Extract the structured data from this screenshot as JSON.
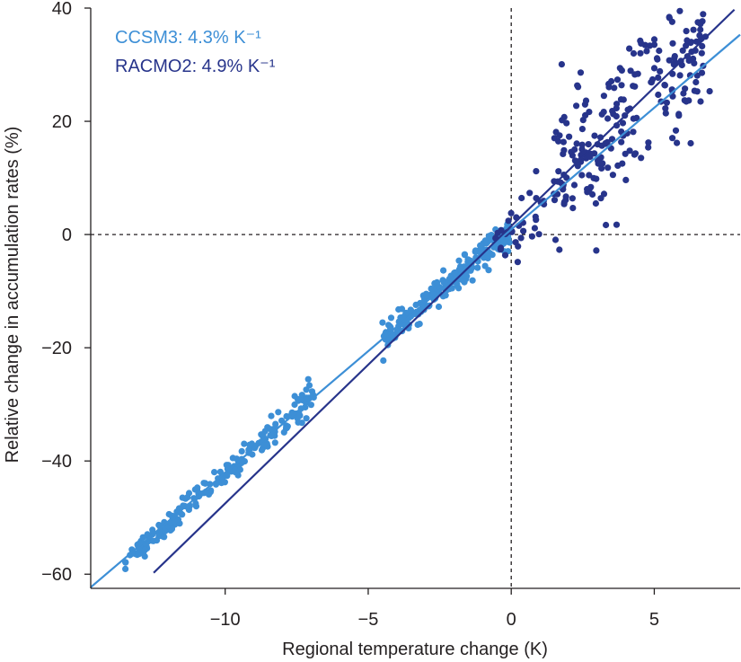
{
  "chart_data": {
    "type": "scatter",
    "title": "",
    "xlabel": "Regional temperature change (K)",
    "ylabel": "Relative change in accumulation rates (%)",
    "xlim": [
      -14.7,
      8.0
    ],
    "ylim": [
      -62.5,
      40.0
    ],
    "xticks": [
      -10,
      -5,
      0,
      5
    ],
    "xtick_labels": [
      "−10",
      "−5",
      "0",
      "5"
    ],
    "yticks": [
      -60,
      -40,
      -20,
      0,
      20,
      40
    ],
    "ytick_labels": [
      "−60",
      "−40",
      "−20",
      "0",
      "20",
      "40"
    ],
    "reference_lines": {
      "x": 0,
      "y": 0,
      "style": "dashed"
    },
    "legend": [
      {
        "label": "CCSM3: 4.3% K⁻¹",
        "color": "#3d8fd6"
      },
      {
        "label": "RACMO2: 4.9% K⁻¹",
        "color": "#27348b"
      }
    ],
    "series": [
      {
        "name": "CCSM3",
        "color": "#3d8fd6",
        "fit_line": {
          "slope": 4.3,
          "intercept": 0.9,
          "x_range": [
            -14.7,
            8.0
          ]
        },
        "clusters": [
          {
            "x_range": [
              -13.5,
              -11.5
            ],
            "slope": 4.3,
            "intercept": 0.4,
            "spread": 0.9,
            "count": 70
          },
          {
            "x_range": [
              -11.5,
              -9.5
            ],
            "slope": 4.3,
            "intercept": 0.8,
            "spread": 1.0,
            "count": 60
          },
          {
            "x_range": [
              -9.5,
              -6.9
            ],
            "slope": 4.3,
            "intercept": 1.2,
            "spread": 1.3,
            "count": 80
          },
          {
            "x_range": [
              -4.5,
              -2.0
            ],
            "slope": 4.3,
            "intercept": 0.8,
            "spread": 1.1,
            "count": 110
          },
          {
            "x_range": [
              -2.0,
              0.0
            ],
            "slope": 4.3,
            "intercept": 0.6,
            "spread": 1.2,
            "count": 120
          }
        ]
      },
      {
        "name": "RACMO2",
        "color": "#27348b",
        "fit_line": {
          "slope": 4.9,
          "intercept": 1.5,
          "x_range": [
            -12.5,
            7.8
          ]
        },
        "clusters": [
          {
            "x_range": [
              -0.6,
              1.5
            ],
            "slope": 4.6,
            "intercept": 0.5,
            "spread": 3.5,
            "count": 35
          },
          {
            "x_range": [
              1.5,
              4.0
            ],
            "slope": 4.6,
            "intercept": 2.0,
            "spread": 6.5,
            "count": 120
          },
          {
            "x_range": [
              4.0,
              7.0
            ],
            "slope": 4.6,
            "intercept": 3.0,
            "spread": 6.5,
            "count": 110
          }
        ]
      }
    ]
  }
}
